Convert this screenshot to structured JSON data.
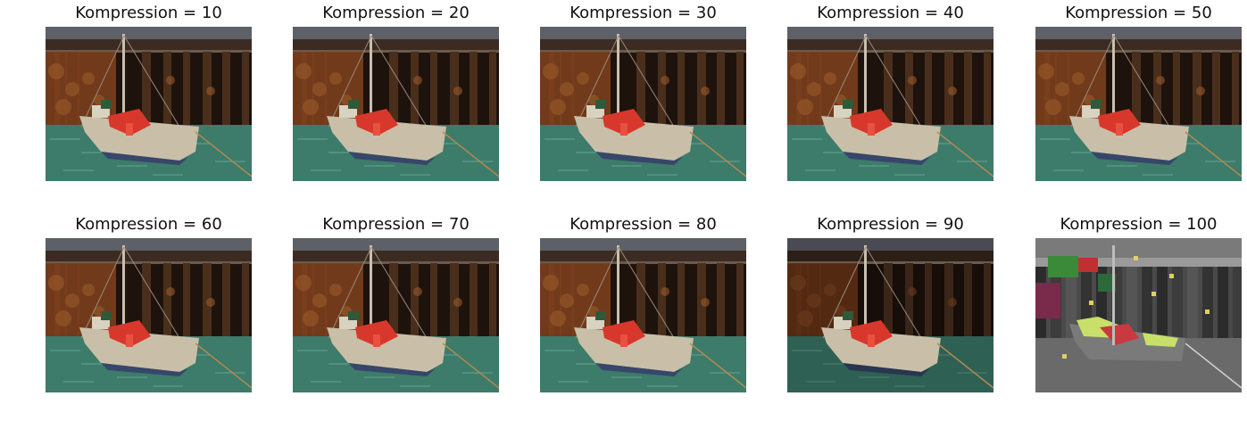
{
  "figure": {
    "panels": [
      {
        "title": "Kompression = 10",
        "variant": "normal"
      },
      {
        "title": "Kompression = 20",
        "variant": "normal"
      },
      {
        "title": "Kompression = 30",
        "variant": "normal"
      },
      {
        "title": "Kompression = 40",
        "variant": "normal"
      },
      {
        "title": "Kompression = 50",
        "variant": "normal"
      },
      {
        "title": "Kompression = 60",
        "variant": "normal"
      },
      {
        "title": "Kompression = 70",
        "variant": "normal"
      },
      {
        "title": "Kompression = 80",
        "variant": "normal"
      },
      {
        "title": "Kompression = 90",
        "variant": "darkened"
      },
      {
        "title": "Kompression = 100",
        "variant": "degraded"
      }
    ]
  },
  "colors": {
    "sky": "#5e6068",
    "deck": "#3b2b22",
    "pier_dark": "#1e120d",
    "rust": "#7a3f1d",
    "water": "#3d7b6a",
    "hull": "#c9bfa8",
    "sail_red": "#d8382b",
    "rope": "#b08a52",
    "gray_light": "#8a8a8a",
    "gray_dark": "#2b2b2b",
    "lime": "#c8e06a"
  }
}
